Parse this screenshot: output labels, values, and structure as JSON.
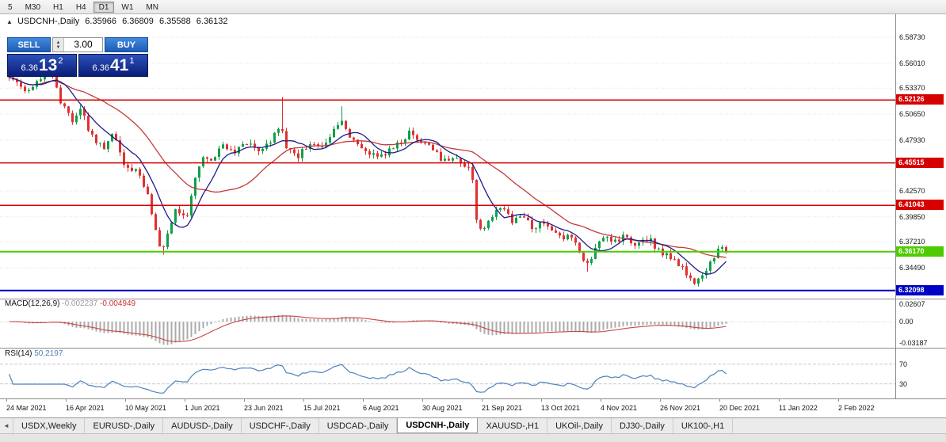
{
  "toolbar": {
    "timeframes": [
      "5",
      "M30",
      "H1",
      "H4",
      "D1",
      "W1",
      "MN"
    ],
    "active": "D1"
  },
  "chart_header": {
    "collapse_icon": "▲",
    "title": "USDCNH-,Daily",
    "open": "6.35966",
    "high": "6.36809",
    "low": "6.35588",
    "close": "6.36132"
  },
  "trade_panel": {
    "sell_label": "SELL",
    "buy_label": "BUY",
    "volume": "3.00",
    "spinner_up_icon": "▲",
    "spinner_down_icon": "▼",
    "sell_price_small": "6.36",
    "sell_price_big": "13",
    "sell_price_sup": "2",
    "buy_price_small": "6.36",
    "buy_price_big": "41",
    "buy_price_sup": "1"
  },
  "indicators": {
    "macd": {
      "label": "MACD(12,26,9)",
      "value": "-0.002237",
      "signal": "-0.004949",
      "ticks": [
        "0.02607",
        "0.00",
        "-0.03187"
      ]
    },
    "rsi": {
      "label": "RSI(14)",
      "value": "50.2197",
      "ticks": [
        "70",
        "30"
      ]
    }
  },
  "tabs": {
    "scroll_left_icon": "◄",
    "items": [
      "USDX,Weekly",
      "EURUSD-,Daily",
      "AUDUSD-,Daily",
      "USDCHF-,Daily",
      "USDCAD-,Daily",
      "USDCNH-,Daily",
      "XAUUSD-,H1",
      "UKOil-,Daily",
      "DJ30-,Daily",
      "UK100-,H1"
    ],
    "active_index": 5
  },
  "chart_data": {
    "type": "candlestick",
    "symbol": "USDCNH-",
    "period": "Daily",
    "ohlc_current": {
      "open": 6.35966,
      "high": 6.36809,
      "low": 6.35588,
      "close": 6.36132
    },
    "last_close": 6.36132,
    "y_axis_ticks": [
      "6.58730",
      "6.56010",
      "6.53370",
      "6.50650",
      "6.47930",
      "6.42570",
      "6.39850",
      "6.37210",
      "6.34490"
    ],
    "x_axis_labels": [
      "24 Mar 2021",
      "16 Apr 2021",
      "10 May 2021",
      "1 Jun 2021",
      "23 Jun 2021",
      "15 Jul 2021",
      "6 Aug 2021",
      "30 Aug 2021",
      "21 Sep 2021",
      "13 Oct 2021",
      "4 Nov 2021",
      "26 Nov 2021",
      "20 Dec 2021",
      "11 Jan 2022",
      "2 Feb 2022"
    ],
    "levels": [
      {
        "price": 6.52126,
        "label": "6.52126",
        "color": "#d60000",
        "width": 1.5,
        "style": "resistance"
      },
      {
        "price": 6.45515,
        "label": "6.45515",
        "color": "#d60000",
        "width": 1.5,
        "style": "resistance"
      },
      {
        "price": 6.41043,
        "label": "6.41043",
        "color": "#d60000",
        "width": 1.5,
        "style": "resistance"
      },
      {
        "price": 6.3617,
        "label": "6.36170",
        "color": "#4ecb00",
        "width": 2,
        "style": "current-price"
      },
      {
        "price": 6.32098,
        "label": "6.32098",
        "color": "#0000c4",
        "width": 2,
        "style": "support"
      }
    ],
    "bars": 182,
    "price_path": [
      [
        0,
        6.548
      ],
      [
        0.022,
        6.53
      ],
      [
        0.044,
        6.545
      ],
      [
        0.057,
        6.556
      ],
      [
        0.072,
        6.52
      ],
      [
        0.088,
        6.5
      ],
      [
        0.099,
        6.514
      ],
      [
        0.116,
        6.482
      ],
      [
        0.133,
        6.47
      ],
      [
        0.144,
        6.488
      ],
      [
        0.16,
        6.456
      ],
      [
        0.177,
        6.446
      ],
      [
        0.193,
        6.424
      ],
      [
        0.202,
        6.392
      ],
      [
        0.213,
        6.36
      ],
      [
        0.223,
        6.39
      ],
      [
        0.234,
        6.406
      ],
      [
        0.249,
        6.4
      ],
      [
        0.26,
        6.438
      ],
      [
        0.271,
        6.464
      ],
      [
        0.285,
        6.456
      ],
      [
        0.298,
        6.474
      ],
      [
        0.315,
        6.466
      ],
      [
        0.331,
        6.478
      ],
      [
        0.348,
        6.47
      ],
      [
        0.365,
        6.48
      ],
      [
        0.379,
        6.497
      ],
      [
        0.387,
        6.472
      ],
      [
        0.403,
        6.462
      ],
      [
        0.42,
        6.477
      ],
      [
        0.437,
        6.47
      ],
      [
        0.453,
        6.488
      ],
      [
        0.466,
        6.499
      ],
      [
        0.481,
        6.476
      ],
      [
        0.497,
        6.468
      ],
      [
        0.514,
        6.459
      ],
      [
        0.53,
        6.47
      ],
      [
        0.547,
        6.477
      ],
      [
        0.561,
        6.489
      ],
      [
        0.575,
        6.476
      ],
      [
        0.591,
        6.47
      ],
      [
        0.606,
        6.456
      ],
      [
        0.619,
        6.462
      ],
      [
        0.633,
        6.455
      ],
      [
        0.645,
        6.45
      ],
      [
        0.652,
        6.392
      ],
      [
        0.663,
        6.386
      ],
      [
        0.676,
        6.4
      ],
      [
        0.687,
        6.41
      ],
      [
        0.702,
        6.392
      ],
      [
        0.716,
        6.4
      ],
      [
        0.729,
        6.386
      ],
      [
        0.743,
        6.392
      ],
      [
        0.757,
        6.386
      ],
      [
        0.768,
        6.376
      ],
      [
        0.782,
        6.381
      ],
      [
        0.796,
        6.362
      ],
      [
        0.807,
        6.346
      ],
      [
        0.818,
        6.369
      ],
      [
        0.831,
        6.375
      ],
      [
        0.845,
        6.371
      ],
      [
        0.86,
        6.378
      ],
      [
        0.873,
        6.371
      ],
      [
        0.886,
        6.378
      ],
      [
        0.897,
        6.371
      ],
      [
        0.908,
        6.361
      ],
      [
        0.923,
        6.356
      ],
      [
        0.937,
        6.346
      ],
      [
        0.95,
        6.336
      ],
      [
        0.959,
        6.328
      ],
      [
        0.97,
        6.341
      ],
      [
        0.981,
        6.356
      ],
      [
        0.992,
        6.367
      ],
      [
        1,
        6.3613
      ]
    ],
    "spikes": [
      {
        "t": 0.379,
        "high_add": 0.033
      },
      {
        "t": 0.057,
        "high_add": 0.01
      },
      {
        "t": 0.466,
        "high_add": 0.012
      },
      {
        "t": 0.807,
        "low_add": 0.009
      },
      {
        "t": 0.213,
        "low_add": 0.004
      },
      {
        "t": 0.959,
        "low_add": 0.002
      }
    ],
    "colors": {
      "up": "#0ea04a",
      "down": "#e03131",
      "ma_fast": "#1c1c8a",
      "ma_slow": "#c23b3b",
      "macd_hist": "#ababab",
      "macd_signal": "#cc4444",
      "rsi_line": "#4f81bd",
      "accent_blue": "#1e5cb4",
      "price_box_blue": "#0a1e78"
    }
  }
}
